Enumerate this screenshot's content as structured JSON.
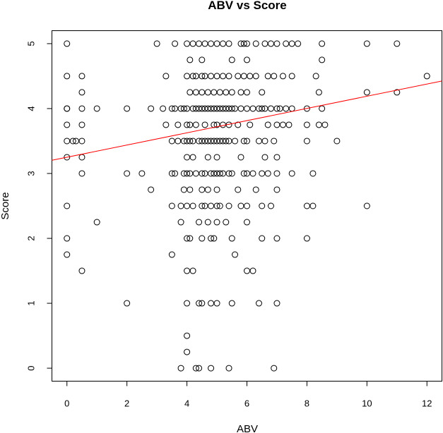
{
  "chart_data": {
    "type": "scatter",
    "title": "ABV vs Score",
    "xlabel": "ABV",
    "ylabel": "Score",
    "xlim": [
      -0.5,
      12.5
    ],
    "ylim": [
      -0.2,
      5.2
    ],
    "xticks": [
      0,
      2,
      4,
      6,
      8,
      10,
      12
    ],
    "yticks": [
      0,
      1,
      2,
      3,
      4,
      5
    ],
    "grid": false,
    "legend": "none",
    "colors": {
      "points": "#000000",
      "regression": "#ff0000",
      "frame": "#000000"
    },
    "regression_line": {
      "intercept": 3.25,
      "slope": 0.094
    },
    "points": [
      [
        0,
        5
      ],
      [
        0,
        4.5
      ],
      [
        0,
        4
      ],
      [
        0,
        4
      ],
      [
        0,
        3.75
      ],
      [
        0,
        3.5
      ],
      [
        0,
        3.25
      ],
      [
        0,
        2.5
      ],
      [
        0,
        2
      ],
      [
        0,
        1.75
      ],
      [
        0.2,
        3.5
      ],
      [
        0.3,
        3.5
      ],
      [
        0.5,
        4.5
      ],
      [
        0.5,
        4.25
      ],
      [
        0.5,
        4
      ],
      [
        0.5,
        3.75
      ],
      [
        0.5,
        3.5
      ],
      [
        0.5,
        3.25
      ],
      [
        0.5,
        3
      ],
      [
        0.5,
        1.5
      ],
      [
        1,
        4
      ],
      [
        1,
        2.25
      ],
      [
        2,
        4
      ],
      [
        2,
        3
      ],
      [
        2,
        1
      ],
      [
        2.5,
        3
      ],
      [
        2.8,
        4
      ],
      [
        2.8,
        2.75
      ],
      [
        3,
        5
      ],
      [
        3.2,
        4
      ],
      [
        3.3,
        4.5
      ],
      [
        3.3,
        3.75
      ],
      [
        3.5,
        4
      ],
      [
        3.5,
        3.5
      ],
      [
        3.5,
        3
      ],
      [
        3.5,
        2.5
      ],
      [
        3.5,
        1.75
      ],
      [
        3.6,
        5
      ],
      [
        3.6,
        4
      ],
      [
        3.6,
        3
      ],
      [
        3.7,
        3.5
      ],
      [
        3.7,
        3.75
      ],
      [
        3.8,
        4
      ],
      [
        3.8,
        2.5
      ],
      [
        3.8,
        2.25
      ],
      [
        3.8,
        0
      ],
      [
        3.9,
        4
      ],
      [
        3.9,
        3.5
      ],
      [
        3.9,
        3
      ],
      [
        3.9,
        2.75
      ],
      [
        4,
        5
      ],
      [
        4,
        4.5
      ],
      [
        4,
        4
      ],
      [
        4,
        3.75
      ],
      [
        4,
        3.5
      ],
      [
        4,
        3.25
      ],
      [
        4,
        3
      ],
      [
        4,
        2.5
      ],
      [
        4,
        2
      ],
      [
        4,
        1.5
      ],
      [
        4,
        1
      ],
      [
        4,
        0.5
      ],
      [
        4,
        0.25
      ],
      [
        4.1,
        4.75
      ],
      [
        4.1,
        4.25
      ],
      [
        4.1,
        3.75
      ],
      [
        4.1,
        3.5
      ],
      [
        4.1,
        3
      ],
      [
        4.1,
        2.75
      ],
      [
        4.1,
        2
      ],
      [
        4.2,
        5
      ],
      [
        4.2,
        4.5
      ],
      [
        4.2,
        4
      ],
      [
        4.2,
        3.5
      ],
      [
        4.2,
        3.25
      ],
      [
        4.2,
        2.5
      ],
      [
        4.2,
        1.5
      ],
      [
        4.3,
        4.5
      ],
      [
        4.3,
        4.25
      ],
      [
        4.3,
        4
      ],
      [
        4.3,
        3.75
      ],
      [
        4.3,
        3
      ],
      [
        4.3,
        0
      ],
      [
        4.4,
        5
      ],
      [
        4.4,
        4
      ],
      [
        4.4,
        3.5
      ],
      [
        4.4,
        2.25
      ],
      [
        4.4,
        1
      ],
      [
        4.4,
        0
      ],
      [
        4.5,
        4.75
      ],
      [
        4.5,
        4.5
      ],
      [
        4.5,
        4.25
      ],
      [
        4.5,
        4
      ],
      [
        4.5,
        3.5
      ],
      [
        4.5,
        3
      ],
      [
        4.5,
        2.75
      ],
      [
        4.5,
        2.5
      ],
      [
        4.5,
        2
      ],
      [
        4.5,
        1
      ],
      [
        4.6,
        5
      ],
      [
        4.6,
        4.5
      ],
      [
        4.6,
        4
      ],
      [
        4.6,
        3.75
      ],
      [
        4.6,
        3.5
      ],
      [
        4.6,
        3
      ],
      [
        4.6,
        2.5
      ],
      [
        4.7,
        4.25
      ],
      [
        4.7,
        4
      ],
      [
        4.7,
        3.5
      ],
      [
        4.7,
        3.25
      ],
      [
        4.7,
        2.75
      ],
      [
        4.7,
        2.25
      ],
      [
        4.8,
        5
      ],
      [
        4.8,
        4.5
      ],
      [
        4.8,
        4
      ],
      [
        4.8,
        3.5
      ],
      [
        4.8,
        3
      ],
      [
        4.8,
        2.5
      ],
      [
        4.8,
        2
      ],
      [
        4.8,
        1
      ],
      [
        4.8,
        0
      ],
      [
        4.9,
        4.25
      ],
      [
        4.9,
        4
      ],
      [
        4.9,
        3.75
      ],
      [
        4.9,
        3.5
      ],
      [
        4.9,
        3
      ],
      [
        4.9,
        2
      ],
      [
        5,
        5
      ],
      [
        5,
        4.5
      ],
      [
        5,
        4
      ],
      [
        5,
        3.75
      ],
      [
        5,
        3.5
      ],
      [
        5,
        3.25
      ],
      [
        5,
        3
      ],
      [
        5,
        2.75
      ],
      [
        5,
        2.5
      ],
      [
        5,
        2.25
      ],
      [
        5,
        1
      ],
      [
        5.1,
        4.25
      ],
      [
        5.1,
        4
      ],
      [
        5.1,
        3.5
      ],
      [
        5.1,
        3
      ],
      [
        5.1,
        2.5
      ],
      [
        5.2,
        5
      ],
      [
        5.2,
        4.5
      ],
      [
        5.2,
        4
      ],
      [
        5.2,
        3.75
      ],
      [
        5.2,
        3.5
      ],
      [
        5.2,
        3
      ],
      [
        5.3,
        4.25
      ],
      [
        5.3,
        4
      ],
      [
        5.3,
        3.5
      ],
      [
        5.3,
        2.25
      ],
      [
        5.4,
        5
      ],
      [
        5.4,
        4.5
      ],
      [
        5.4,
        4
      ],
      [
        5.4,
        3.75
      ],
      [
        5.4,
        3.5
      ],
      [
        5.4,
        3
      ],
      [
        5.4,
        2.5
      ],
      [
        5.4,
        0
      ],
      [
        5.5,
        4.75
      ],
      [
        5.5,
        4.25
      ],
      [
        5.5,
        4
      ],
      [
        5.5,
        3
      ],
      [
        5.5,
        2
      ],
      [
        5.5,
        1
      ],
      [
        5.6,
        4
      ],
      [
        5.6,
        3.5
      ],
      [
        5.6,
        1.75
      ],
      [
        5.7,
        4.5
      ],
      [
        5.7,
        3.75
      ],
      [
        5.7,
        2.75
      ],
      [
        5.8,
        5
      ],
      [
        5.8,
        4.25
      ],
      [
        5.8,
        4
      ],
      [
        5.8,
        3.25
      ],
      [
        5.8,
        2.5
      ],
      [
        5.9,
        5
      ],
      [
        5.9,
        4.5
      ],
      [
        5.9,
        3.5
      ],
      [
        5.9,
        3
      ],
      [
        6,
        5
      ],
      [
        6,
        4.75
      ],
      [
        6,
        4.25
      ],
      [
        6,
        4
      ],
      [
        6,
        3.5
      ],
      [
        6,
        3
      ],
      [
        6,
        2.5
      ],
      [
        6,
        2.25
      ],
      [
        6,
        1.5
      ],
      [
        6.1,
        4.5
      ],
      [
        6.1,
        3.75
      ],
      [
        6.2,
        4
      ],
      [
        6.2,
        3
      ],
      [
        6.2,
        1.5
      ],
      [
        6.3,
        5
      ],
      [
        6.3,
        4.5
      ],
      [
        6.3,
        2.75
      ],
      [
        6.4,
        4
      ],
      [
        6.4,
        3.5
      ],
      [
        6.4,
        1
      ],
      [
        6.5,
        4.25
      ],
      [
        6.5,
        4
      ],
      [
        6.5,
        3
      ],
      [
        6.5,
        2.5
      ],
      [
        6.5,
        2
      ],
      [
        6.6,
        5
      ],
      [
        6.6,
        4
      ],
      [
        6.6,
        3.5
      ],
      [
        6.6,
        3.25
      ],
      [
        6.7,
        4.5
      ],
      [
        6.7,
        3.75
      ],
      [
        6.7,
        3
      ],
      [
        6.8,
        5
      ],
      [
        6.8,
        4
      ],
      [
        6.8,
        2.5
      ],
      [
        6.9,
        4.5
      ],
      [
        6.9,
        3.5
      ],
      [
        6.9,
        0
      ],
      [
        7,
        5
      ],
      [
        7,
        4
      ],
      [
        7,
        3.75
      ],
      [
        7,
        3.25
      ],
      [
        7,
        3
      ],
      [
        7,
        2.75
      ],
      [
        7,
        2
      ],
      [
        7,
        1
      ],
      [
        7.1,
        4
      ],
      [
        7.2,
        4.5
      ],
      [
        7.2,
        3.75
      ],
      [
        7.3,
        5
      ],
      [
        7.3,
        4
      ],
      [
        7.4,
        3.75
      ],
      [
        7.5,
        5
      ],
      [
        7.5,
        4.5
      ],
      [
        7.5,
        4
      ],
      [
        7.5,
        3
      ],
      [
        7.7,
        5
      ],
      [
        8,
        4
      ],
      [
        8,
        3.75
      ],
      [
        8,
        3.5
      ],
      [
        8,
        2.5
      ],
      [
        8,
        2
      ],
      [
        8.2,
        3
      ],
      [
        8.2,
        2.5
      ],
      [
        8.3,
        4.5
      ],
      [
        8.4,
        4.25
      ],
      [
        8.4,
        3.75
      ],
      [
        8.5,
        5
      ],
      [
        8.5,
        4.75
      ],
      [
        8.5,
        4
      ],
      [
        8.6,
        3.75
      ],
      [
        9,
        3.5
      ],
      [
        10,
        5
      ],
      [
        10,
        4.25
      ],
      [
        10,
        2.5
      ],
      [
        11,
        5
      ],
      [
        11,
        4.25
      ],
      [
        12,
        4.5
      ]
    ]
  }
}
